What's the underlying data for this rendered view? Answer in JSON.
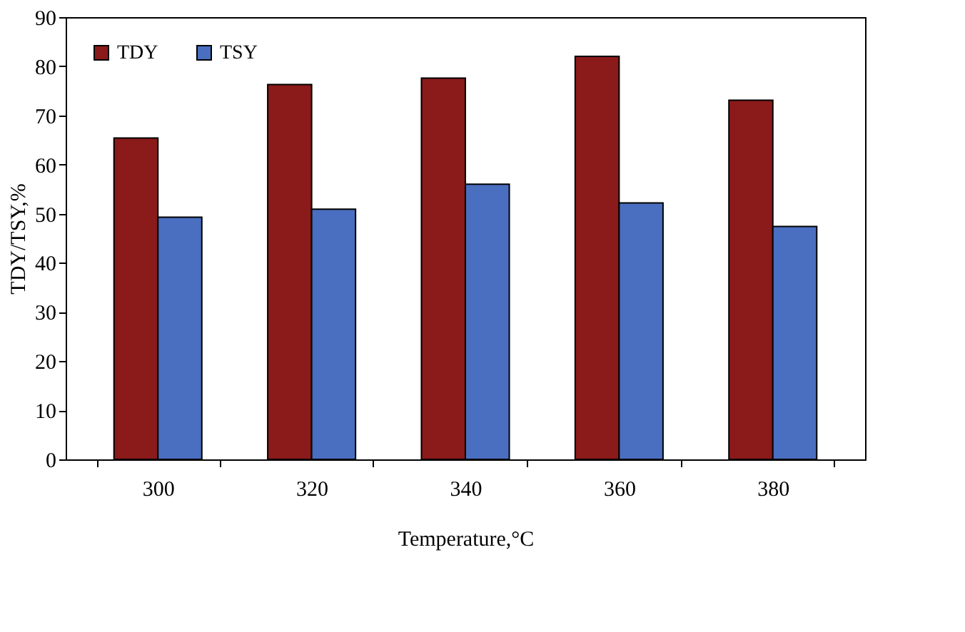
{
  "chart_data": {
    "type": "bar",
    "xlabel": "Temperature,°C",
    "ylabel": "TDY/TSY,%",
    "categories": [
      "300",
      "320",
      "340",
      "360",
      "380"
    ],
    "series": [
      {
        "name": "TDY",
        "color": "#8b1a1a",
        "values": [
          65.4,
          76.3,
          77.6,
          82.0,
          73.1
        ]
      },
      {
        "name": "TSY",
        "color": "#4a6fc0",
        "values": [
          49.3,
          50.9,
          56.0,
          52.2,
          47.4
        ]
      }
    ],
    "ylim": [
      0,
      90
    ],
    "yticks": [
      0,
      10,
      20,
      30,
      40,
      50,
      60,
      70,
      80,
      90
    ],
    "grid": false,
    "legend": "top left"
  }
}
